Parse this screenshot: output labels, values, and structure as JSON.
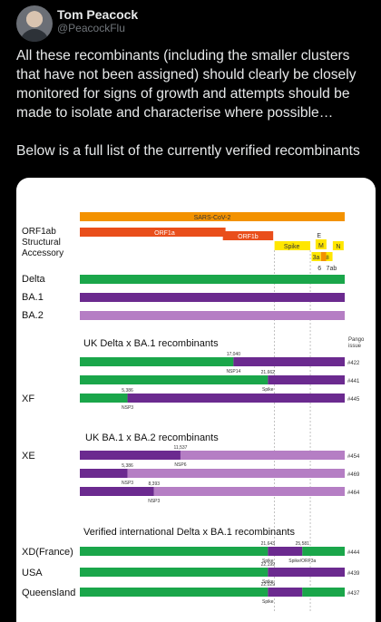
{
  "author": {
    "name": "Tom Peacock",
    "handle": "@PeacockFlu"
  },
  "tweet": {
    "paragraph1": "All these recombinants (including the smaller clusters that have not been assigned) should clearly be closely monitored for signs of growth and attempts should be made to isolate and characterise where possible…",
    "paragraph2": "Below is a full list of the currently verified recombinants"
  },
  "colors": {
    "delta": "#1aa64a",
    "ba1": "#6b2a8f",
    "ba2": "#b57ec4",
    "orf1a": "#e94e1b",
    "orange": "#f39200",
    "yellow": "#ffe600"
  },
  "figure": {
    "genome": {
      "sars_label": "SARS-CoV-2",
      "orf1a_label": "ORF1a",
      "orf1b_label": "ORF1b",
      "spike_label": "Spike",
      "e_label": "E",
      "m_label": "M",
      "n_label": "N",
      "orf3a_label": "3a",
      "orf6_label": "6",
      "orf7ab_label": "7ab",
      "orf8_label": "8",
      "row_labels": [
        "ORF1ab",
        "Structural",
        "Accessory"
      ]
    },
    "parents": [
      "Delta",
      "BA.1",
      "BA.2"
    ],
    "pango_label": [
      "Pango",
      "issue"
    ],
    "sections": {
      "uk_delta_ba1": "UK Delta x BA.1 recombinants",
      "uk_ba1_ba2": "UK BA.1 x BA.2 recombinants",
      "intl_delta_ba1": "Verified international Delta x BA.1 recombinants"
    },
    "rows": [
      {
        "label": "",
        "left": "delta",
        "right": "ba1",
        "split": 0.58,
        "pos": "17,040",
        "gene": "NSP14",
        "issue": "#422"
      },
      {
        "label": "",
        "left": "delta",
        "right": "ba1",
        "split": 0.71,
        "pos": "21,662",
        "gene": "Spike",
        "issue": "#441"
      },
      {
        "label": "XF",
        "left": "delta",
        "right": "ba1",
        "split": 0.18,
        "pos": "5,386",
        "gene": "NSP3",
        "issue": "#445"
      },
      {
        "label": "XE",
        "left": "ba1",
        "right": "ba2",
        "split": 0.38,
        "pos": "11,537",
        "gene": "NSP6",
        "issue": "#454"
      },
      {
        "label": "",
        "left": "ba1",
        "right": "ba2",
        "split": 0.18,
        "pos": "5,386",
        "gene": "NSP3",
        "issue": "#469"
      },
      {
        "label": "",
        "left": "ba1",
        "right": "ba2",
        "split": 0.28,
        "pos": "8,393",
        "gene": "NSP3",
        "issue": "#464"
      },
      {
        "label": "XD(France)",
        "left": "delta",
        "right": "ba1",
        "split": 0.71,
        "split2": 0.84,
        "pos": "21,643",
        "pos2": "25,581",
        "gene": "Spike",
        "gene2": "Spike/ORF3a",
        "issue": "#444"
      },
      {
        "label": "USA",
        "left": "delta",
        "right": "ba1",
        "split": 0.71,
        "pos": "22,199",
        "gene": "Spike",
        "issue": "#439"
      },
      {
        "label": "Queensland",
        "left": "delta",
        "right": "ba1",
        "split": 0.71,
        "split2": 0.84,
        "pos": "22,029",
        "gene": "Spike",
        "issue": "#437"
      }
    ]
  }
}
